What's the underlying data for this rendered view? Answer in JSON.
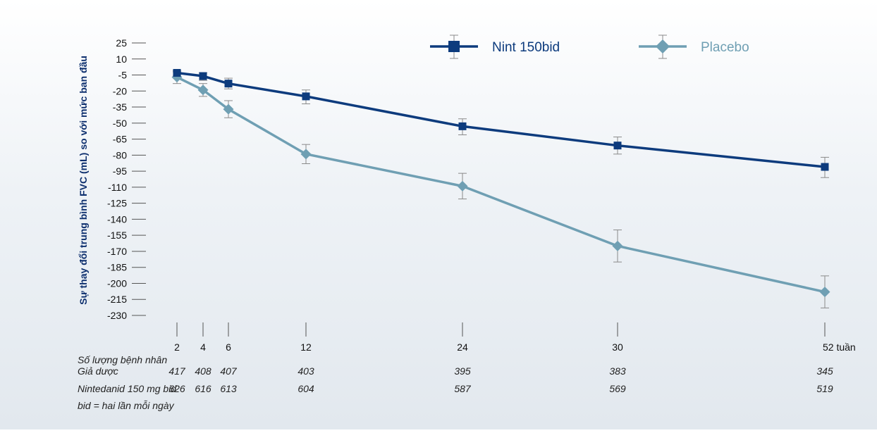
{
  "chart_data": {
    "type": "line",
    "ylabel": "Sự thay đổi trung bình FVC (mL) so với mức ban đầu",
    "y_ticks": [
      25,
      10,
      -5,
      -20,
      -35,
      -50,
      -65,
      -80,
      -95,
      -110,
      -125,
      -140,
      -155,
      -170,
      -185,
      -200,
      -215,
      -230
    ],
    "ylim": [
      -230,
      25
    ],
    "x": [
      2,
      4,
      6,
      12,
      24,
      30,
      52
    ],
    "x_tick_labels": [
      "2",
      "4",
      "6",
      "12",
      "24",
      "30",
      "52 tuần"
    ],
    "legend_position": "top-right",
    "series": [
      {
        "name": "Nint 150bid",
        "color": "#0d3b7d",
        "marker": "square",
        "values": [
          -3,
          -6,
          -13,
          -25,
          -53,
          -71,
          -91
        ],
        "err_upper": [
          -1,
          -3,
          -8,
          -19,
          -46,
          -63,
          -82
        ],
        "err_lower": [
          -6,
          -10,
          -18,
          -32,
          -61,
          -79,
          -101
        ]
      },
      {
        "name": "Placebo",
        "color": "#6f9fb3",
        "marker": "diamond",
        "values": [
          -7,
          -19,
          -37,
          -79,
          -109,
          -165,
          -208
        ],
        "err_upper": [
          -2,
          -13,
          -29,
          -70,
          -97,
          -150,
          -193
        ],
        "err_lower": [
          -13,
          -25,
          -45,
          -88,
          -121,
          -180,
          -223
        ]
      }
    ],
    "table": {
      "header": "Số lượng bệnh nhân",
      "rows": [
        {
          "label": "Giả dược",
          "values": [
            "417",
            "408",
            "407",
            "403",
            "395",
            "383",
            "345"
          ]
        },
        {
          "label": "Nintedanid 150 mg bid",
          "values": [
            "626",
            "616",
            "613",
            "604",
            "587",
            "569",
            "519"
          ]
        }
      ],
      "footnote": "bid = hai lần mỗi ngày"
    }
  }
}
